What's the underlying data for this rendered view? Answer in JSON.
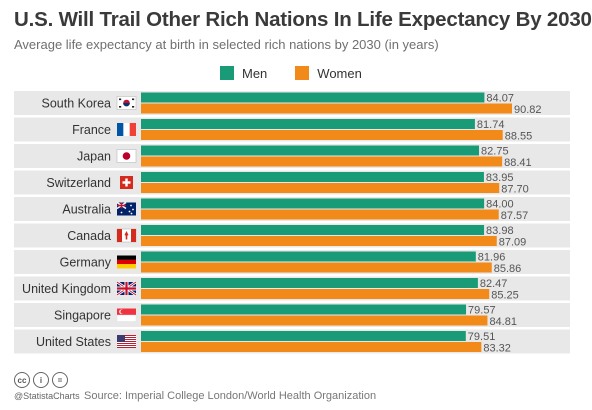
{
  "header": {
    "title": "U.S. Will Trail Other Rich Nations In Life Expectancy By 2030",
    "subtitle": "Average life expectancy at birth in selected rich nations by 2030 (in years)"
  },
  "legend": {
    "men": "Men",
    "women": "Women"
  },
  "colors": {
    "men": "#1a9b78",
    "women": "#f28a1a",
    "stripe": "#e8e8e8",
    "text": "#555555"
  },
  "chart_data": {
    "type": "bar",
    "orientation": "horizontal",
    "title": "U.S. Will Trail Other Rich Nations In Life Expectancy By 2030",
    "subtitle": "Average life expectancy at birth in selected rich nations by 2030 (in years)",
    "categories": [
      "South Korea",
      "France",
      "Japan",
      "Switzerland",
      "Australia",
      "Canada",
      "Germany",
      "United Kingdom",
      "Singapore",
      "United States"
    ],
    "series": [
      {
        "name": "Men",
        "values": [
          84.07,
          81.74,
          82.75,
          83.95,
          84.0,
          83.98,
          81.96,
          82.47,
          79.57,
          79.51
        ]
      },
      {
        "name": "Women",
        "values": [
          90.82,
          88.55,
          88.41,
          87.7,
          87.57,
          87.09,
          85.86,
          85.25,
          84.81,
          83.32
        ]
      }
    ],
    "value_labels": {
      "men": [
        "84.07",
        "81.74",
        "82.75",
        "83.95",
        "84.00",
        "83.98",
        "81.96",
        "82.47",
        "79.57",
        "79.51"
      ],
      "women": [
        "90.82",
        "88.55",
        "88.41",
        "87.70",
        "87.57",
        "87.09",
        "85.86",
        "85.25",
        "84.81",
        "83.32"
      ]
    },
    "flags": [
      "south-korea-flag",
      "france-flag",
      "japan-flag",
      "switzerland-flag",
      "australia-flag",
      "canada-flag",
      "germany-flag",
      "united-kingdom-flag",
      "singapore-flag",
      "united-states-flag"
    ],
    "xlim": [
      0,
      90.82
    ],
    "grid": false,
    "legend_position": "top"
  },
  "footer": {
    "handle": "@StatistaCharts",
    "source": "Source: Imperial College London/World Health Organization",
    "cc_icons": [
      "creative-commons-icon",
      "attribution-icon",
      "no-derivatives-icon"
    ]
  }
}
